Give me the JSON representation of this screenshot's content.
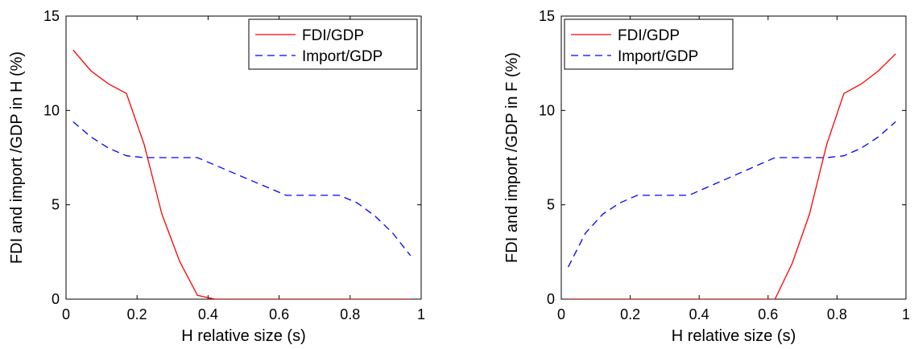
{
  "colors": {
    "fdi": "#ff0000",
    "import": "#0000ff",
    "axes": "#000000",
    "background": "#ffffff"
  },
  "chart_data": [
    {
      "type": "line",
      "xlabel": "H relative size (s)",
      "ylabel": "FDI and import /GDP in H (%)",
      "xlim": [
        0,
        1
      ],
      "ylim": [
        0,
        15
      ],
      "xticks": [
        0,
        0.2,
        0.4,
        0.6,
        0.8,
        1
      ],
      "xtick_labels": [
        "0",
        "0.2",
        "0.4",
        "0.6",
        "0.8",
        "1"
      ],
      "yticks": [
        0,
        5,
        10,
        15
      ],
      "ytick_labels": [
        "0",
        "5",
        "10",
        "15"
      ],
      "grid": false,
      "legend": {
        "position": "top-right",
        "entries": [
          "FDI/GDP",
          "Import/GDP"
        ]
      },
      "series": [
        {
          "name": "FDI/GDP",
          "style": "solid",
          "color": "#ff0000",
          "x": [
            0.02,
            0.07,
            0.12,
            0.17,
            0.22,
            0.27,
            0.32,
            0.37,
            0.42,
            0.47,
            0.52,
            0.57,
            0.62,
            0.67,
            0.72,
            0.77,
            0.82,
            0.87,
            0.92,
            0.97
          ],
          "y": [
            13.2,
            12.1,
            11.4,
            10.9,
            8.2,
            4.5,
            2.0,
            0.2,
            0,
            0,
            0,
            0,
            0,
            0,
            0,
            0,
            0,
            0,
            0,
            0
          ]
        },
        {
          "name": "Import/GDP",
          "style": "dashed",
          "color": "#0000ff",
          "x": [
            0.02,
            0.07,
            0.12,
            0.17,
            0.22,
            0.27,
            0.32,
            0.37,
            0.42,
            0.47,
            0.52,
            0.57,
            0.62,
            0.67,
            0.72,
            0.77,
            0.82,
            0.87,
            0.92,
            0.97
          ],
          "y": [
            9.4,
            8.6,
            8.0,
            7.6,
            7.5,
            7.5,
            7.5,
            7.5,
            7.1,
            6.7,
            6.3,
            5.9,
            5.5,
            5.5,
            5.5,
            5.5,
            5.1,
            4.4,
            3.5,
            2.3
          ]
        }
      ]
    },
    {
      "type": "line",
      "xlabel": "H relative size (s)",
      "ylabel": "FDI and import /GDP in F (%)",
      "xlim": [
        0,
        1
      ],
      "ylim": [
        0,
        15
      ],
      "xticks": [
        0,
        0.2,
        0.4,
        0.6,
        0.8,
        1
      ],
      "xtick_labels": [
        "0",
        "0.2",
        "0.4",
        "0.6",
        "0.8",
        "1"
      ],
      "yticks": [
        0,
        5,
        10,
        15
      ],
      "ytick_labels": [
        "0",
        "5",
        "10",
        "15"
      ],
      "grid": false,
      "legend": {
        "position": "top-left",
        "entries": [
          "FDI/GDP",
          "Import/GDP"
        ]
      },
      "series": [
        {
          "name": "FDI/GDP",
          "style": "solid",
          "color": "#ff0000",
          "x": [
            0.02,
            0.07,
            0.12,
            0.17,
            0.22,
            0.27,
            0.32,
            0.37,
            0.42,
            0.47,
            0.52,
            0.57,
            0.62,
            0.67,
            0.72,
            0.77,
            0.82,
            0.87,
            0.92,
            0.97
          ],
          "y": [
            0,
            0,
            0,
            0,
            0,
            0,
            0,
            0,
            0,
            0,
            0,
            0,
            0,
            1.9,
            4.5,
            8.2,
            10.9,
            11.4,
            12.1,
            13.0
          ]
        },
        {
          "name": "Import/GDP",
          "style": "dashed",
          "color": "#0000ff",
          "x": [
            0.02,
            0.07,
            0.12,
            0.17,
            0.22,
            0.27,
            0.32,
            0.37,
            0.42,
            0.47,
            0.52,
            0.57,
            0.62,
            0.67,
            0.72,
            0.77,
            0.82,
            0.87,
            0.92,
            0.97
          ],
          "y": [
            1.7,
            3.5,
            4.5,
            5.1,
            5.5,
            5.5,
            5.5,
            5.5,
            5.9,
            6.3,
            6.7,
            7.1,
            7.5,
            7.5,
            7.5,
            7.5,
            7.6,
            8.0,
            8.6,
            9.4
          ]
        }
      ]
    }
  ]
}
